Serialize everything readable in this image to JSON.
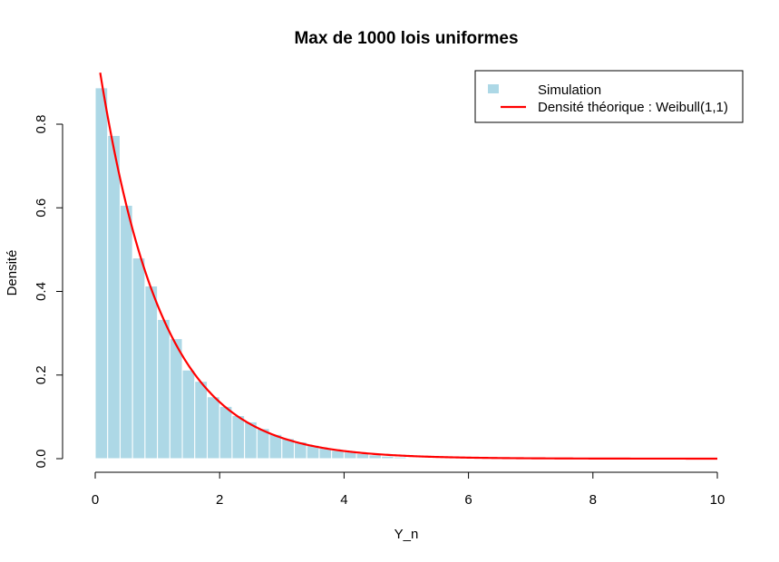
{
  "chart_data": {
    "type": "bar",
    "title": "Max de 1000 lois uniformes",
    "xlabel": "Y_n",
    "ylabel": "Densité",
    "xlim": [
      0,
      10
    ],
    "ylim": [
      0,
      0.9
    ],
    "x_ticks": [
      "0",
      "2",
      "4",
      "6",
      "8",
      "10"
    ],
    "y_ticks": [
      "0.0",
      "0.2",
      "0.4",
      "0.6",
      "0.8"
    ],
    "bin_width": 0.2,
    "bins_start": [
      0.0,
      0.2,
      0.4,
      0.6,
      0.8,
      1.0,
      1.2,
      1.4,
      1.6,
      1.8,
      2.0,
      2.2,
      2.4,
      2.6,
      2.8,
      3.0,
      3.2,
      3.4,
      3.6,
      3.8,
      4.0,
      4.2,
      4.4,
      4.6,
      4.8
    ],
    "values": [
      0.887,
      0.773,
      0.606,
      0.48,
      0.413,
      0.333,
      0.287,
      0.212,
      0.185,
      0.148,
      0.125,
      0.103,
      0.088,
      0.072,
      0.058,
      0.048,
      0.04,
      0.032,
      0.026,
      0.02,
      0.016,
      0.012,
      0.009,
      0.006,
      0.004
    ],
    "histogram_color": "#add8e6",
    "curve": {
      "name": "Densité théorique : Weibull(1,1)",
      "function": "exp(-x)",
      "x_range": [
        0.08,
        10
      ],
      "color": "#ff0000"
    },
    "legend": {
      "position": "top-right",
      "entries": [
        "Simulation",
        "Densité théorique : Weibull(1,1)"
      ]
    },
    "grid": false
  }
}
